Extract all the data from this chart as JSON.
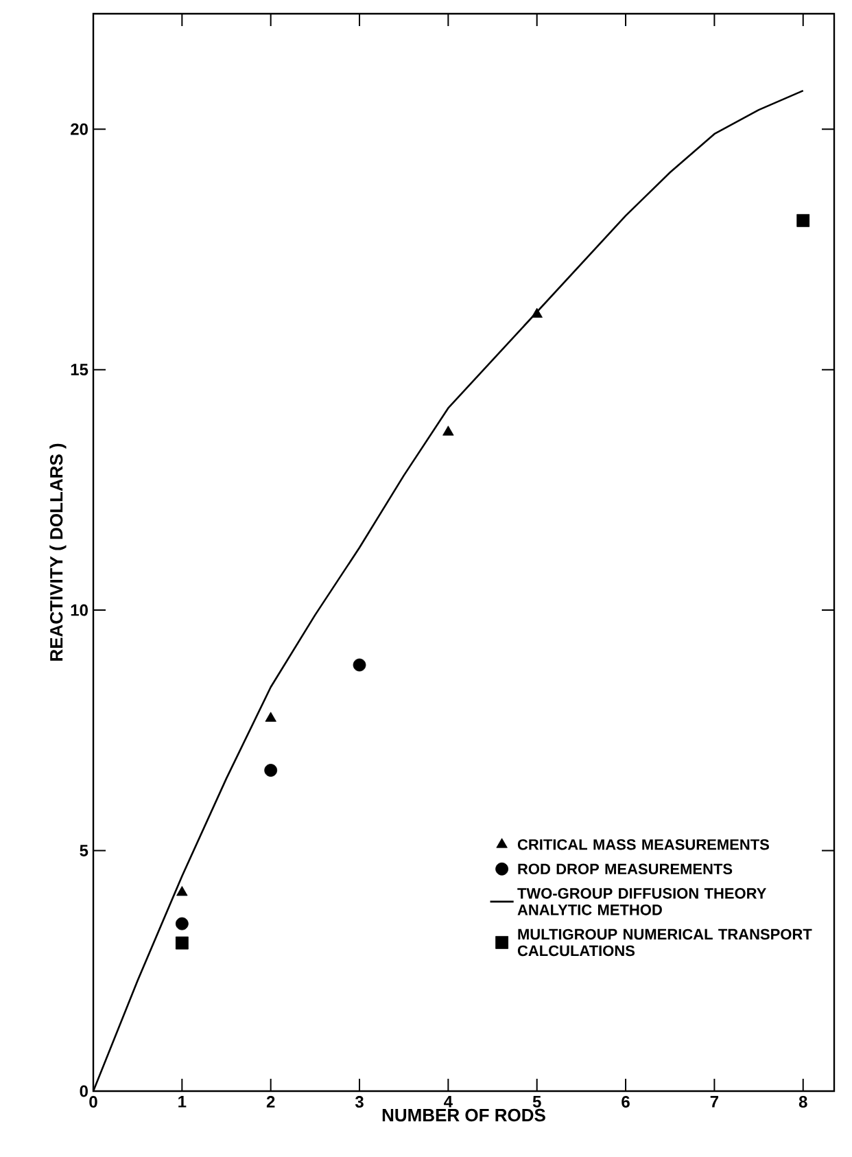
{
  "chart_data": {
    "type": "scatter",
    "xlabel": "NUMBER OF RODS",
    "ylabel": "REACTIVITY ( DOLLARS )",
    "xlim": [
      0,
      8.35
    ],
    "ylim": [
      0,
      22.4
    ],
    "xticks": [
      0,
      1,
      2,
      3,
      4,
      5,
      6,
      7,
      8
    ],
    "yticks": [
      0,
      5,
      10,
      15,
      20
    ],
    "grid": false,
    "legend": "bottom right",
    "series": [
      {
        "name": "CRITICAL MASS MEASUREMENTS",
        "marker": "triangle",
        "color": "#000000",
        "x": [
          1,
          2,
          4,
          5
        ],
        "values": [
          4.13,
          7.75,
          13.7,
          16.15
        ]
      },
      {
        "name": "ROD DROP MEASUREMENTS",
        "marker": "circle",
        "color": "#000000",
        "x": [
          1,
          2,
          3
        ],
        "values": [
          3.48,
          6.67,
          8.86
        ]
      },
      {
        "name": "TWO-GROUP DIFFUSION THEORY ANALYTIC METHOD",
        "type": "line",
        "marker": "none",
        "line_style": "solid",
        "color": "#000000",
        "x": [
          0,
          0.5,
          1,
          1.5,
          2,
          2.5,
          3,
          3.5,
          4,
          4.5,
          5,
          5.5,
          6,
          6.5,
          7,
          7.5,
          8
        ],
        "values": [
          0,
          2.3,
          4.47,
          6.5,
          8.4,
          9.9,
          11.3,
          12.8,
          14.2,
          15.2,
          16.2,
          17.2,
          18.2,
          19.1,
          19.9,
          20.4,
          20.8
        ]
      },
      {
        "name": "MULTIGROUP NUMERICAL TRANSPORT CALCULATIONS",
        "marker": "square",
        "color": "#000000",
        "x": [
          1,
          8
        ],
        "values": [
          3.08,
          18.1
        ]
      }
    ]
  }
}
